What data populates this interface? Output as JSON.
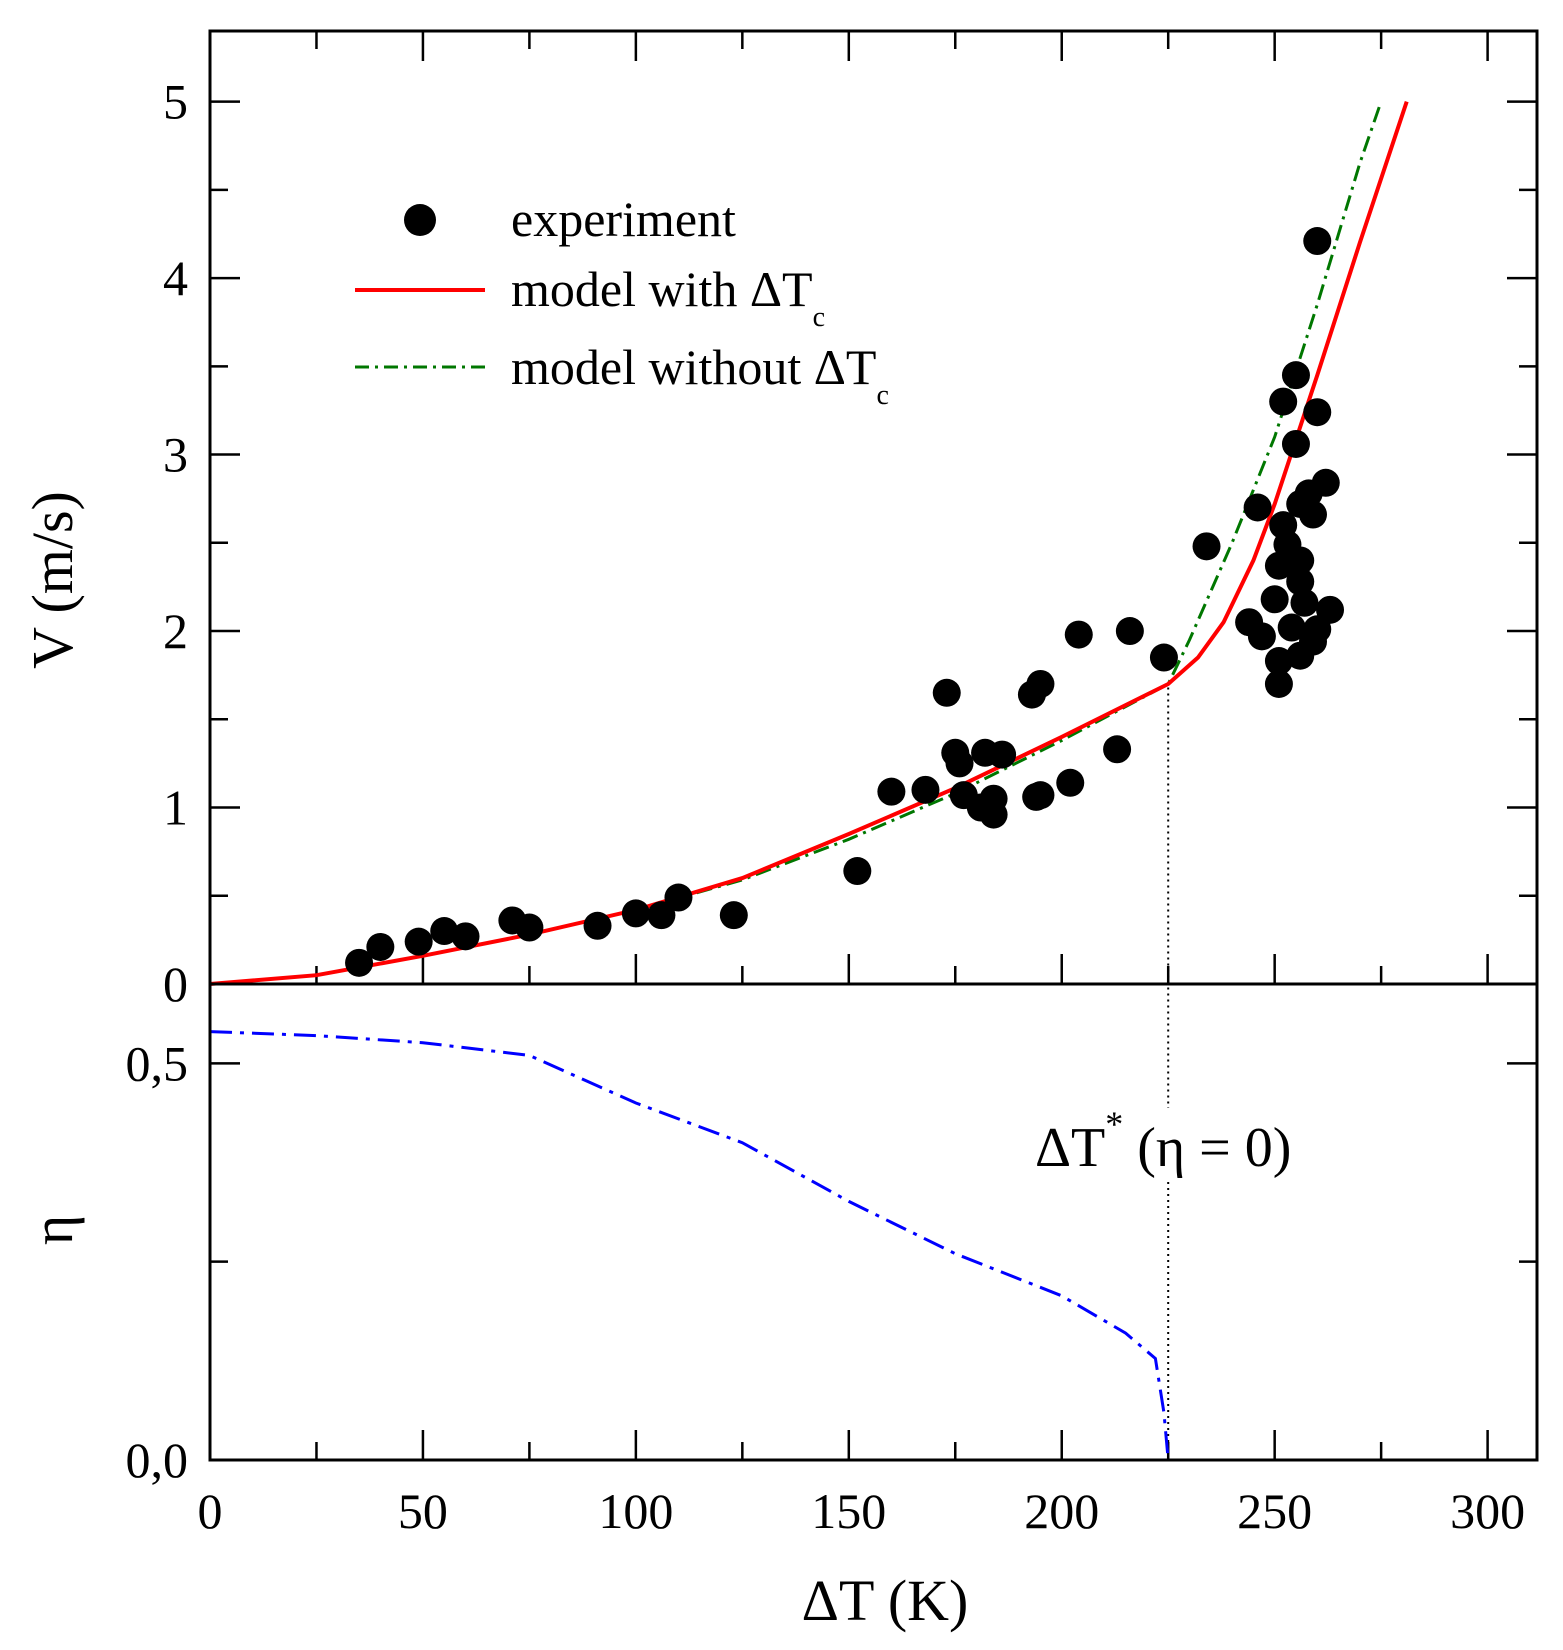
{
  "chart_data": [
    {
      "type": "scatter",
      "panel": "top",
      "xlabel": "ΔT (K)",
      "ylabel": "V (m/s)",
      "xlim": [
        0,
        311.6
      ],
      "ylim": [
        0,
        5.4
      ],
      "x_ticks": [
        "0",
        "50",
        "100",
        "150",
        "200",
        "250",
        "300"
      ],
      "y_ticks": [
        "0",
        "1",
        "2",
        "3",
        "4",
        "5"
      ],
      "legend_position": "top-left",
      "legend": {
        "experiment": "experiment",
        "with_main": "model with ΔT",
        "with_sub": "c",
        "without_main": "model without ΔT",
        "without_sub": "c"
      },
      "colors": {
        "experiment": "#000000",
        "with": "#ff0000",
        "without": "#007700"
      },
      "series": [
        {
          "name": "experiment",
          "x": [
            35,
            40,
            49,
            55,
            60,
            71,
            75,
            91,
            100,
            106,
            110,
            123,
            152,
            160,
            168,
            173,
            175,
            176,
            177,
            181,
            182,
            184,
            184,
            186,
            193,
            195,
            194,
            195,
            202,
            204,
            213,
            216,
            224,
            234,
            244,
            246,
            247,
            251,
            251,
            250,
            251,
            252,
            252,
            253,
            254,
            255,
            255,
            256,
            256,
            256,
            256,
            257,
            259,
            258,
            260,
            260,
            259,
            260,
            262,
            263
          ],
          "y": [
            0.12,
            0.21,
            0.24,
            0.3,
            0.27,
            0.36,
            0.32,
            0.33,
            0.4,
            0.39,
            0.49,
            0.39,
            0.64,
            1.09,
            1.1,
            1.65,
            1.31,
            1.25,
            1.07,
            1.0,
            1.31,
            1.05,
            0.96,
            1.3,
            1.64,
            1.7,
            1.06,
            1.07,
            1.14,
            1.98,
            1.33,
            2.0,
            1.85,
            2.48,
            2.05,
            2.7,
            1.97,
            1.7,
            1.83,
            2.18,
            2.37,
            3.3,
            2.6,
            2.49,
            2.02,
            3.45,
            3.06,
            1.86,
            2.72,
            2.4,
            2.28,
            2.16,
            2.66,
            2.78,
            4.21,
            3.24,
            1.94,
            2.01,
            2.84,
            2.12
          ]
        },
        {
          "name": "model with ΔTc",
          "x": [
            0,
            25,
            50,
            75,
            100,
            125,
            150,
            175,
            200,
            225,
            232,
            238,
            245,
            250,
            260,
            270,
            281
          ],
          "y": [
            0,
            0.05,
            0.16,
            0.28,
            0.42,
            0.6,
            0.85,
            1.11,
            1.4,
            1.7,
            1.85,
            2.05,
            2.4,
            2.72,
            3.45,
            4.2,
            5.0
          ]
        },
        {
          "name": "model without ΔTc",
          "x": [
            0,
            25,
            50,
            75,
            100,
            125,
            150,
            175,
            200,
            225,
            230,
            240,
            250,
            260,
            270,
            275
          ],
          "y": [
            0,
            0.05,
            0.16,
            0.28,
            0.42,
            0.59,
            0.82,
            1.08,
            1.38,
            1.7,
            1.95,
            2.5,
            3.1,
            3.85,
            4.65,
            5.0
          ]
        }
      ]
    },
    {
      "type": "line",
      "panel": "bottom",
      "xlabel": "ΔT (K)",
      "ylabel": "η",
      "xlim": [
        0,
        311.6
      ],
      "ylim": [
        0,
        0.6
      ],
      "y_ticks": [
        "0,0",
        "0,5"
      ],
      "annotation": {
        "main": "ΔT",
        "sup": "*",
        "rest": "(η = 0)",
        "x": 225
      },
      "colors": {
        "eta": "#0000ff"
      },
      "series": [
        {
          "name": "η",
          "x": [
            0,
            25,
            50,
            75,
            100,
            125,
            150,
            175,
            200,
            215,
            222,
            224,
            225,
            275
          ],
          "y": [
            0.54,
            0.535,
            0.526,
            0.51,
            0.45,
            0.4,
            0.326,
            0.26,
            0.207,
            0.16,
            0.128,
            0.06,
            0,
            0
          ]
        }
      ]
    }
  ]
}
